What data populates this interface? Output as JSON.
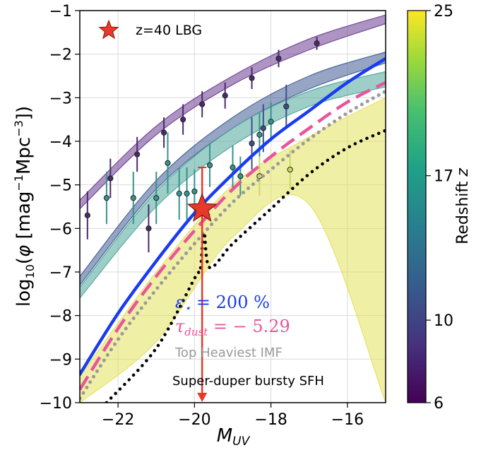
{
  "chart_data": {
    "type": "line",
    "xlabel": "M_UV",
    "ylabel": "log10(φ [mag⁻¹Mpc⁻³])",
    "xlim": [
      -23,
      -15
    ],
    "ylim": [
      -10,
      -1
    ],
    "xticks": [
      -22,
      -20,
      -18,
      -16
    ],
    "yticks": [
      -1,
      -2,
      -3,
      -4,
      -5,
      -6,
      -7,
      -8,
      -9,
      -10
    ],
    "grid": true,
    "colorbar": {
      "label": "Redshift z",
      "ticks": [
        6,
        10,
        17,
        25
      ],
      "range": [
        6,
        25
      ],
      "colormap": "viridis"
    },
    "legend": {
      "location": "top-left",
      "entries": [
        {
          "label": "z=40 LBG",
          "marker": "star",
          "color": "#e8382a"
        }
      ]
    },
    "bands": [
      {
        "z": 8,
        "color": "#6a3d8f",
        "x": [
          -23,
          -21,
          -19,
          -17,
          -15
        ],
        "lower": [
          -5.55,
          -3.85,
          -2.7,
          -1.9,
          -1.3
        ],
        "upper": [
          -5.35,
          -3.65,
          -2.5,
          -1.65,
          -1.1
        ]
      },
      {
        "z": 10,
        "color": "#3f5b93",
        "x": [
          -23,
          -21,
          -19,
          -17,
          -15
        ],
        "lower": [
          -7.3,
          -5.1,
          -3.7,
          -2.8,
          -2.2
        ],
        "upper": [
          -7.1,
          -4.9,
          -3.45,
          -2.5,
          -1.95
        ]
      },
      {
        "z": 14,
        "color": "#4ea59a",
        "x": [
          -23,
          -21,
          -19,
          -17,
          -15
        ],
        "lower": [
          -7.6,
          -5.5,
          -4.1,
          -3.2,
          -2.75
        ],
        "upper": [
          -7.35,
          -5.15,
          -3.7,
          -2.85,
          -2.4
        ]
      },
      {
        "z": 22,
        "color": "#e4e15c",
        "x": [
          -23,
          -21,
          -19,
          -17,
          -15
        ],
        "lower": [
          -10,
          -8.6,
          -6.2,
          -5.45,
          -10
        ],
        "upper": [
          -9.4,
          -7.0,
          -5.0,
          -3.9,
          -3.0
        ]
      }
    ],
    "series": [
      {
        "name": "ε⋆ = 200 %",
        "color": "#1a3cf0",
        "style": "solid",
        "x": [
          -23,
          -22,
          -21,
          -20,
          -19,
          -18,
          -17,
          -16,
          -15
        ],
        "y": [
          -9.35,
          -7.95,
          -6.75,
          -5.65,
          -4.75,
          -3.95,
          -3.3,
          -2.65,
          -2.1
        ]
      },
      {
        "name": "τdust = −5.29",
        "color": "#e8559a",
        "style": "dashed",
        "x": [
          -23,
          -22,
          -21,
          -20,
          -19,
          -18,
          -17,
          -16,
          -15
        ],
        "y": [
          -9.7,
          -8.3,
          -7.1,
          -6.05,
          -5.1,
          -4.35,
          -3.7,
          -3.1,
          -2.65
        ]
      },
      {
        "name": "Top Heaviest IMF",
        "color": "#9a9a9a",
        "style": "dotted",
        "x": [
          -23,
          -22,
          -21,
          -20,
          -19,
          -18,
          -17,
          -16,
          -15
        ],
        "y": [
          -9.9,
          -8.55,
          -7.4,
          -6.35,
          -5.4,
          -4.65,
          -3.95,
          -3.35,
          -2.85
        ]
      },
      {
        "name": "Super-duper bursty SFH",
        "color": "#000000",
        "style": "dotted",
        "x": [
          -22.3,
          -21,
          -20,
          -19.85,
          -19.75,
          -19.6,
          -19,
          -18,
          -17,
          -16,
          -15
        ],
        "y": [
          -10,
          -8.75,
          -7.15,
          -6.95,
          -6.1,
          -6.9,
          -6.35,
          -5.55,
          -4.75,
          -4.15,
          -3.75
        ]
      }
    ],
    "data_points": [
      {
        "z": 8,
        "color": "#4b2a6b",
        "x": -22.8,
        "y": -5.7,
        "err": 0.55
      },
      {
        "z": 8,
        "color": "#4b2a6b",
        "x": -22.2,
        "y": -4.85,
        "err": 0.45
      },
      {
        "z": 8,
        "color": "#4b2a6b",
        "x": -21.5,
        "y": -4.3,
        "err": 0.4
      },
      {
        "z": 8,
        "color": "#4b2a6b",
        "x": -21.2,
        "y": -6.0,
        "err": 0.55
      },
      {
        "z": 8,
        "color": "#4b2a6b",
        "x": -20.8,
        "y": -3.8,
        "err": 0.35
      },
      {
        "z": 8,
        "color": "#4b2a6b",
        "x": -20.3,
        "y": -3.5,
        "err": 0.35
      },
      {
        "z": 8,
        "color": "#4b2a6b",
        "x": -19.8,
        "y": -3.15,
        "err": 0.3
      },
      {
        "z": 8,
        "color": "#4b2a6b",
        "x": -19.2,
        "y": -2.95,
        "err": 0.3
      },
      {
        "z": 8,
        "color": "#4b2a6b",
        "x": -18.5,
        "y": -2.55,
        "err": 0.25
      },
      {
        "z": 8,
        "color": "#4b2a6b",
        "x": -17.8,
        "y": -2.1,
        "err": 0.2
      },
      {
        "z": 8,
        "color": "#4b2a6b",
        "x": -16.8,
        "y": -1.75,
        "err": 0.15
      },
      {
        "z": 10,
        "color": "#3d4f8a",
        "x": -18.5,
        "y": -4.05,
        "err": 0.6
      },
      {
        "z": 10,
        "color": "#3d4f8a",
        "x": -18.2,
        "y": -3.7,
        "err": 0.55
      },
      {
        "z": 10,
        "color": "#3d4f8a",
        "x": -17.6,
        "y": -3.2,
        "err": 0.5
      },
      {
        "z": 13,
        "color": "#35948c",
        "x": -22.3,
        "y": -5.3,
        "err": 0.6
      },
      {
        "z": 13,
        "color": "#35948c",
        "x": -21.6,
        "y": -5.3,
        "err": 0.6
      },
      {
        "z": 13,
        "color": "#35948c",
        "x": -21.0,
        "y": -5.3,
        "err": 0.6
      },
      {
        "z": 13,
        "color": "#35948c",
        "x": -20.7,
        "y": -4.5,
        "err": 0.7
      },
      {
        "z": 13,
        "color": "#35948c",
        "x": -20.4,
        "y": -5.2,
        "err": 0.6
      },
      {
        "z": 13,
        "color": "#35948c",
        "x": -20.2,
        "y": -5.2,
        "err": 0.6
      },
      {
        "z": 13,
        "color": "#35948c",
        "x": -20.0,
        "y": -5.15,
        "err": 0.5
      },
      {
        "z": 13,
        "color": "#35948c",
        "x": -19.6,
        "y": -4.55,
        "err": 0.5
      },
      {
        "z": 13,
        "color": "#35948c",
        "x": -19.0,
        "y": -4.6,
        "err": 0.5
      },
      {
        "z": 13,
        "color": "#35948c",
        "x": -18.8,
        "y": -4.8,
        "err": 0.45
      },
      {
        "z": 13,
        "color": "#35948c",
        "x": -18.3,
        "y": -3.85,
        "err": 0.5
      },
      {
        "z": 13,
        "color": "#35948c",
        "x": -18.0,
        "y": -3.55,
        "err": 0.45
      },
      {
        "z": 22,
        "color": "#c9d86a",
        "x": -18.3,
        "y": -4.8,
        "err": 0.45
      },
      {
        "z": 22,
        "color": "#c9d86a",
        "x": -17.5,
        "y": -4.65,
        "err": 0.45
      }
    ],
    "highlight_point": {
      "label": "z=40 LBG",
      "x": -19.8,
      "y": -5.55,
      "upper_err": 0.95,
      "arrow_to": -10,
      "color": "#e8382a"
    },
    "annotations": [
      {
        "text": "ε⋆ = 200 %",
        "color": "#1a3cf0"
      },
      {
        "text": "τdust = − 5.29",
        "color": "#e8559a"
      },
      {
        "text": "Top Heaviest IMF",
        "color": "#9a9a9a"
      },
      {
        "text": "Super-duper bursty SFH",
        "color": "#000000"
      }
    ]
  }
}
